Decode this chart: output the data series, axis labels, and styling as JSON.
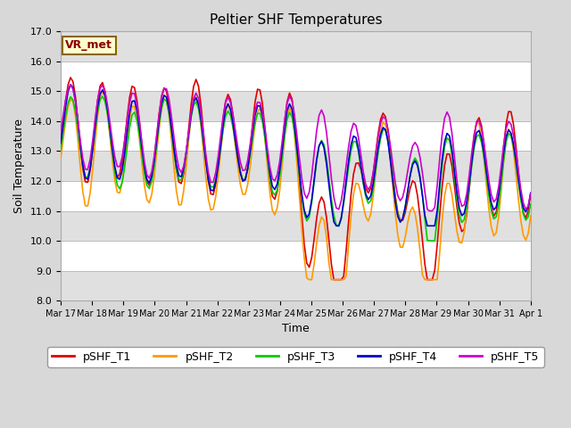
{
  "title": "Peltier SHF Temperatures",
  "xlabel": "Time",
  "ylabel": "Soil Temperature",
  "ylim": [
    8.0,
    17.0
  ],
  "yticks": [
    8.0,
    9.0,
    10.0,
    11.0,
    12.0,
    13.0,
    14.0,
    15.0,
    16.0,
    17.0
  ],
  "annotation": "VR_met",
  "series_colors": {
    "pSHF_T1": "#dd0000",
    "pSHF_T2": "#ff9900",
    "pSHF_T3": "#00cc00",
    "pSHF_T4": "#0000cc",
    "pSHF_T5": "#cc00cc"
  },
  "fig_bg_color": "#d8d8d8",
  "plot_bg_color": "#ffffff",
  "stripe_color": "#e0e0e0",
  "annotation_bg": "#ffffcc",
  "annotation_border": "#886600",
  "annotation_text_color": "#880000",
  "linewidth": 1.2,
  "title_fontsize": 11,
  "axis_fontsize": 9,
  "legend_fontsize": 9,
  "tick_fontsize": 8,
  "xtick_labels": [
    "Mar 17",
    "Mar 18",
    "Mar 19",
    "Mar 20",
    "Mar 21",
    "Mar 22",
    "Mar 23",
    "Mar 24",
    "Mar 25",
    "Mar 26",
    "Mar 27",
    "Mar 28",
    "Mar 29",
    "Mar 30",
    "Mar 31",
    "Apr 1"
  ]
}
